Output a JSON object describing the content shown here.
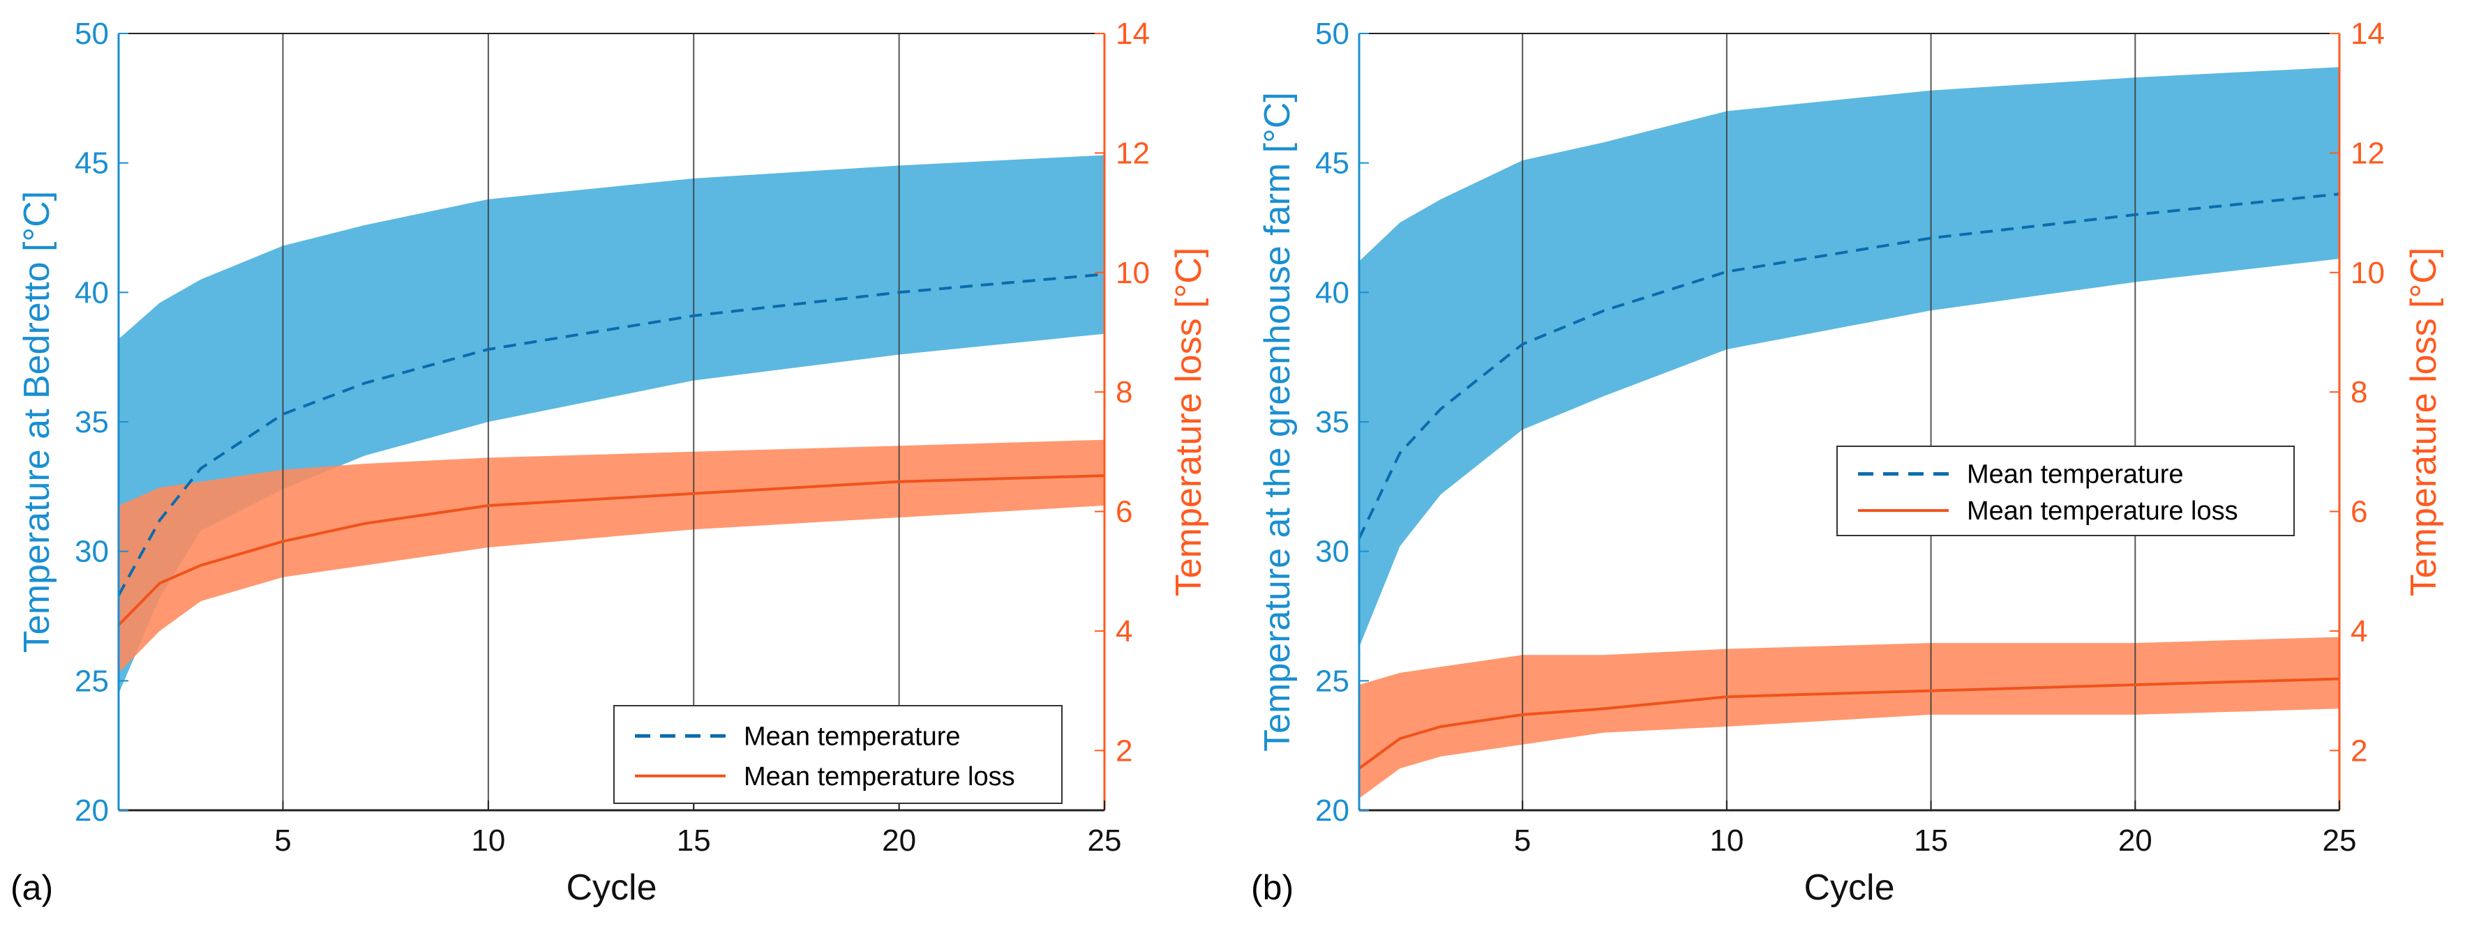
{
  "figure": {
    "colors": {
      "left_axis": "#1a8fd1",
      "right_axis": "#ff5a1f",
      "band_temperature": "#5cb8e0",
      "band_loss": "#ff8a5c",
      "mean_temperature_line": "#0b6cae",
      "mean_loss_line": "#f0531d",
      "grid": "#3a3a3a"
    }
  },
  "chart_data": [
    {
      "type": "area",
      "panel_label": "(a)",
      "xlabel": "Cycle",
      "ylabel_left": "Temperature  at Bedretto [°C]",
      "ylabel_right": "Temperature loss [°C]",
      "xlim": [
        1,
        25
      ],
      "ylim_left": [
        20,
        50
      ],
      "ylim_right": [
        1,
        14
      ],
      "x_ticks": [
        5,
        10,
        15,
        20,
        25
      ],
      "y_left_ticks": [
        20,
        25,
        30,
        35,
        40,
        45,
        50
      ],
      "y_right_ticks": [
        2,
        4,
        6,
        8,
        10,
        12,
        14
      ],
      "grid": "vertical lines at x ticks",
      "legend_position": "bottom-right",
      "legend": [
        "Mean temperature",
        "Mean temperature loss"
      ],
      "x": [
        1,
        2,
        3,
        5,
        7,
        10,
        15,
        20,
        25
      ],
      "series": [
        {
          "name": "Mean temperature",
          "axis": "left",
          "style": "dashed",
          "values": [
            28.3,
            31.2,
            33.2,
            35.3,
            36.5,
            37.8,
            39.1,
            40.0,
            40.7
          ]
        },
        {
          "name": "Mean temperature loss",
          "axis": "right",
          "style": "solid",
          "values": [
            4.1,
            4.8,
            5.1,
            5.5,
            5.8,
            6.1,
            6.3,
            6.5,
            6.6
          ]
        }
      ],
      "bands": [
        {
          "axis": "left",
          "upper": [
            38.2,
            39.6,
            40.5,
            41.8,
            42.6,
            43.6,
            44.4,
            44.9,
            45.3
          ],
          "lower": [
            24.5,
            28.2,
            30.8,
            32.4,
            33.7,
            35.0,
            36.6,
            37.6,
            38.4
          ]
        },
        {
          "axis": "right",
          "upper": [
            6.1,
            6.4,
            6.5,
            6.7,
            6.8,
            6.9,
            7.0,
            7.1,
            7.2
          ],
          "lower": [
            3.3,
            4.0,
            4.5,
            4.9,
            5.1,
            5.4,
            5.7,
            5.9,
            6.1
          ]
        }
      ]
    },
    {
      "type": "area",
      "panel_label": "(b)",
      "xlabel": "Cycle",
      "ylabel_left": "Temperature  at the greenhouse farm [°C]",
      "ylabel_right": "Temperature loss [°C]",
      "xlim": [
        1,
        25
      ],
      "ylim_left": [
        20,
        50
      ],
      "ylim_right": [
        1,
        14
      ],
      "x_ticks": [
        5,
        10,
        15,
        20,
        25
      ],
      "y_left_ticks": [
        20,
        25,
        30,
        35,
        40,
        45,
        50
      ],
      "y_right_ticks": [
        2,
        4,
        6,
        8,
        10,
        12,
        14
      ],
      "grid": "vertical lines at x ticks",
      "legend_position": "center-right",
      "legend": [
        "Mean temperature",
        "Mean temperature loss"
      ],
      "x": [
        1,
        2,
        3,
        5,
        7,
        10,
        15,
        20,
        25
      ],
      "series": [
        {
          "name": "Mean temperature",
          "axis": "left",
          "style": "dashed",
          "values": [
            30.5,
            33.8,
            35.5,
            38.0,
            39.3,
            40.8,
            42.1,
            43.0,
            43.8
          ]
        },
        {
          "name": "Mean temperature loss",
          "axis": "right",
          "style": "solid",
          "values": [
            1.7,
            2.2,
            2.4,
            2.6,
            2.7,
            2.9,
            3.0,
            3.1,
            3.2
          ]
        }
      ],
      "bands": [
        {
          "axis": "left",
          "upper": [
            41.2,
            42.7,
            43.6,
            45.1,
            45.8,
            47.0,
            47.8,
            48.3,
            48.7
          ],
          "lower": [
            26.3,
            30.2,
            32.2,
            34.7,
            36.0,
            37.8,
            39.3,
            40.4,
            41.3
          ]
        },
        {
          "axis": "right",
          "upper": [
            3.1,
            3.3,
            3.4,
            3.6,
            3.6,
            3.7,
            3.8,
            3.8,
            3.9
          ],
          "lower": [
            1.2,
            1.7,
            1.9,
            2.1,
            2.3,
            2.4,
            2.6,
            2.6,
            2.7
          ]
        }
      ]
    }
  ]
}
